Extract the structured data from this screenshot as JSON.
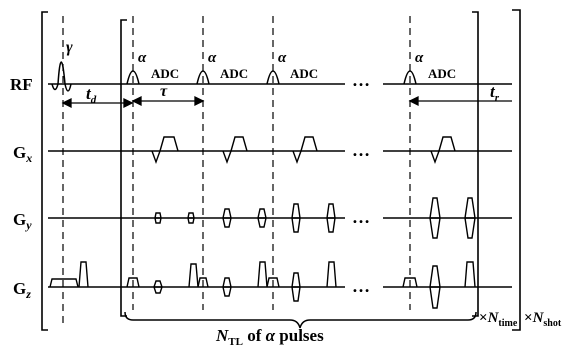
{
  "rows": {
    "rf": "RF",
    "gx_base": "G",
    "gx_sub": "x",
    "gy_base": "G",
    "gy_sub": "y",
    "gz_base": "G",
    "gz_sub": "z"
  },
  "symbols": {
    "gamma": "γ",
    "alpha": "α",
    "adc": "ADC",
    "tau": "τ",
    "td_base": "t",
    "td_sub": "d",
    "tr_base": "t",
    "tr_sub": "r",
    "dots": "…"
  },
  "brace_label": {
    "n_base": "N",
    "n_sub": "TL",
    "of": "of",
    "alpha": "α",
    "pulses": "pulses"
  },
  "repeat": {
    "times1_sym": "×",
    "times1_base": "N",
    "times1_sub": "time",
    "times2_sym": "×",
    "times2_base": "N",
    "times2_sub": "shot"
  }
}
